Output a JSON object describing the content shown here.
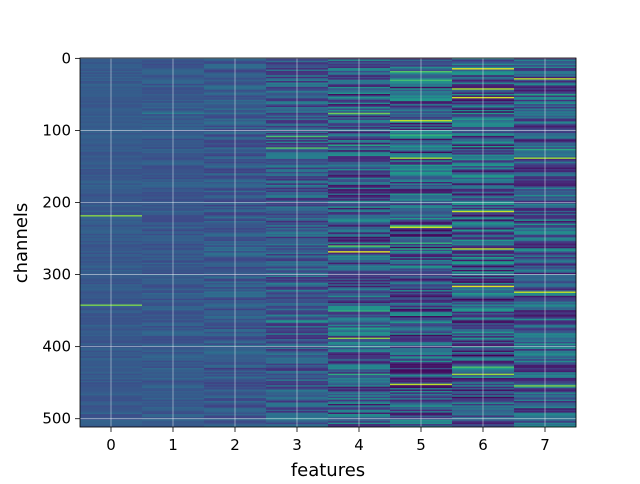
{
  "chart_data": {
    "type": "heatmap",
    "xlabel": "features",
    "ylabel": "channels",
    "x_ticks": [
      "0",
      "1",
      "2",
      "3",
      "4",
      "5",
      "6",
      "7"
    ],
    "y_ticks": [
      "0",
      "100",
      "200",
      "300",
      "400",
      "500"
    ],
    "y_tick_values": [
      0,
      100,
      200,
      300,
      400,
      500
    ],
    "n_features": 8,
    "n_channels": 512,
    "ylim": [
      512,
      0
    ],
    "grid": true,
    "colormap": "viridis",
    "base_color": "#3b528b",
    "column_noise": [
      0.04,
      0.06,
      0.09,
      0.16,
      0.24,
      0.26,
      0.27,
      0.22
    ],
    "highlights": [
      {
        "feature": 0,
        "channel": 218,
        "value": 0.82
      },
      {
        "feature": 0,
        "channel": 342,
        "value": 0.8
      },
      {
        "feature": 3,
        "channel": 108,
        "value": 0.7
      },
      {
        "feature": 3,
        "channel": 125,
        "value": 0.72
      },
      {
        "feature": 4,
        "channel": 77,
        "value": 0.78
      },
      {
        "feature": 4,
        "channel": 268,
        "value": 0.95
      },
      {
        "feature": 4,
        "channel": 389,
        "value": 0.82
      },
      {
        "feature": 5,
        "channel": 87,
        "value": 0.9
      },
      {
        "feature": 5,
        "channel": 138,
        "value": 0.85
      },
      {
        "feature": 5,
        "channel": 234,
        "value": 0.92
      },
      {
        "feature": 5,
        "channel": 262,
        "value": 0.02
      },
      {
        "feature": 5,
        "channel": 453,
        "value": 0.9
      },
      {
        "feature": 6,
        "channel": 15,
        "value": 0.95
      },
      {
        "feature": 6,
        "channel": 42,
        "value": 0.88
      },
      {
        "feature": 6,
        "channel": 55,
        "value": 0.93
      },
      {
        "feature": 6,
        "channel": 212,
        "value": 0.92
      },
      {
        "feature": 6,
        "channel": 264,
        "value": 0.9
      },
      {
        "feature": 6,
        "channel": 438,
        "value": 0.85
      },
      {
        "feature": 7,
        "channel": 28,
        "value": 0.9
      },
      {
        "feature": 7,
        "channel": 138,
        "value": 0.85
      },
      {
        "feature": 7,
        "channel": 325,
        "value": 0.9
      },
      {
        "feature": 7,
        "channel": 455,
        "value": 0.8
      }
    ]
  }
}
